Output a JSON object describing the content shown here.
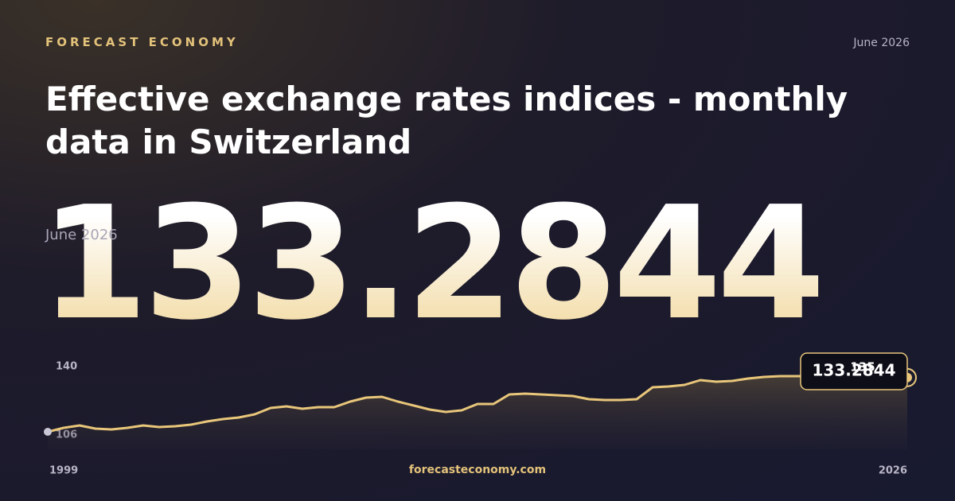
{
  "brand": "FORECAST ECONOMY",
  "date": "June 2026",
  "title": "Effective exchange rates indices - monthly data in Switzerland",
  "headline": {
    "value": "133.2844",
    "date": "June 2026"
  },
  "footer": "forecasteconomy.com",
  "chart_data": {
    "type": "line",
    "color": "#e8c67a",
    "x": [
      1999,
      1999.5,
      2000,
      2000.5,
      2001,
      2001.5,
      2002,
      2002.5,
      2003,
      2003.5,
      2004,
      2004.5,
      2005,
      2005.5,
      2006,
      2006.5,
      2007,
      2007.5,
      2008,
      2008.5,
      2009,
      2009.5,
      2010,
      2010.5,
      2011,
      2011.5,
      2012,
      2012.5,
      2013,
      2013.5,
      2014,
      2014.5,
      2015,
      2015.5,
      2016,
      2016.5,
      2017,
      2017.5,
      2018,
      2018.5,
      2019,
      2019.5,
      2020,
      2020.5,
      2021,
      2021.5,
      2022,
      2022.5,
      2023,
      2023.5,
      2024,
      2024.5,
      2025,
      2025.5,
      2026
    ],
    "values": [
      106,
      108,
      109.2,
      107.6,
      107.2,
      108,
      109.2,
      108.4,
      108.8,
      109.6,
      111.2,
      112.4,
      113.2,
      114.8,
      118,
      118.8,
      117.6,
      118.4,
      118.4,
      121.2,
      123.2,
      123.6,
      121.2,
      119.2,
      117.2,
      116,
      116.8,
      120,
      120,
      124.8,
      125.2,
      124.8,
      124.4,
      124,
      122.4,
      122,
      122,
      122.4,
      128.4,
      128.8,
      129.6,
      132,
      131.2,
      131.6,
      132.8,
      133.6,
      134,
      134,
      134,
      133.6,
      134,
      134.4,
      134.8,
      134.4,
      133.2844
    ],
    "xlim": [
      1999,
      2026
    ],
    "xticks": [
      1999,
      2026
    ],
    "ylim": [
      106,
      140
    ],
    "yticks": [
      106,
      140
    ],
    "max_label": 135
  }
}
